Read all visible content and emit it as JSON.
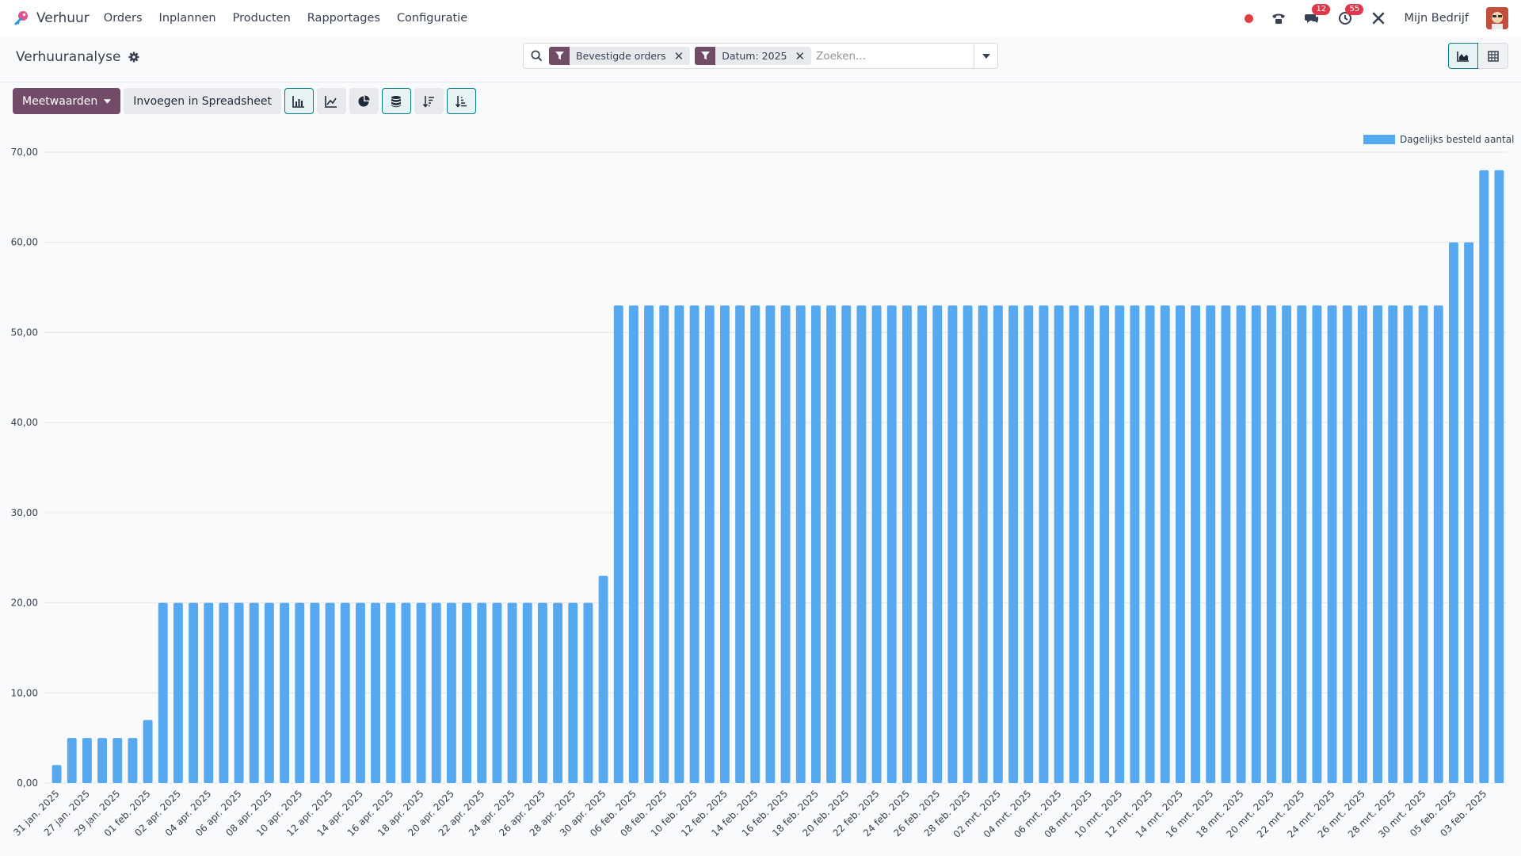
{
  "navbar": {
    "app_name": "Verhuur",
    "menu": [
      "Orders",
      "Inplannen",
      "Producten",
      "Rapportages",
      "Configuratie"
    ],
    "messages_badge": "12",
    "activities_badge": "55",
    "company": "Mijn Bedrijf"
  },
  "control_panel": {
    "title": "Verhuuranalyse",
    "facets": [
      {
        "label": "Bevestigde orders"
      },
      {
        "label": "Datum: 2025"
      }
    ],
    "search_placeholder": "Zoeken...",
    "measures_label": "Meetwaarden",
    "spreadsheet_label": "Invoegen in Spreadsheet"
  },
  "colors": {
    "brand": "#714b67",
    "accent": "#017e84",
    "bar": "#56a8ef"
  },
  "chart_data": {
    "type": "bar",
    "title": "",
    "xlabel": "",
    "ylabel": "",
    "ylim": [
      0,
      70
    ],
    "yticks": [
      "0,00",
      "10,00",
      "20,00",
      "30,00",
      "40,00",
      "50,00",
      "60,00",
      "70,00"
    ],
    "legend_position": "top-right",
    "grid": true,
    "series": [
      {
        "name": "Dagelijks besteld aantal",
        "values": [
          2,
          5,
          5,
          5,
          5,
          5,
          7,
          20,
          20,
          20,
          20,
          20,
          20,
          20,
          20,
          20,
          20,
          20,
          20,
          20,
          20,
          20,
          20,
          20,
          20,
          20,
          20,
          20,
          20,
          20,
          20,
          20,
          20,
          20,
          20,
          20,
          23,
          53,
          53,
          53,
          53,
          53,
          53,
          53,
          53,
          53,
          53,
          53,
          53,
          53,
          53,
          53,
          53,
          53,
          53,
          53,
          53,
          53,
          53,
          53,
          53,
          53,
          53,
          53,
          53,
          53,
          53,
          53,
          53,
          53,
          53,
          53,
          53,
          53,
          53,
          53,
          53,
          53,
          53,
          53,
          53,
          53,
          53,
          53,
          53,
          53,
          53,
          53,
          53,
          53,
          53,
          53,
          60,
          60,
          68,
          68
        ]
      }
    ],
    "x_tick_labels": [
      "31 jan. 2025",
      "27 jan. 2025",
      "29 jan. 2025",
      "01 feb. 2025",
      "02 apr. 2025",
      "04 apr. 2025",
      "06 apr. 2025",
      "08 apr. 2025",
      "10 apr. 2025",
      "12 apr. 2025",
      "14 apr. 2025",
      "16 apr. 2025",
      "18 apr. 2025",
      "20 apr. 2025",
      "22 apr. 2025",
      "24 apr. 2025",
      "26 apr. 2025",
      "28 apr. 2025",
      "30 apr. 2025",
      "06 feb. 2025",
      "08 feb. 2025",
      "10 feb. 2025",
      "12 feb. 2025",
      "14 feb. 2025",
      "16 feb. 2025",
      "18 feb. 2025",
      "20 feb. 2025",
      "22 feb. 2025",
      "24 feb. 2025",
      "26 feb. 2025",
      "28 feb. 2025",
      "02 mrt. 2025",
      "04 mrt. 2025",
      "06 mrt. 2025",
      "08 mrt. 2025",
      "10 mrt. 2025",
      "12 mrt. 2025",
      "14 mrt. 2025",
      "16 mrt. 2025",
      "18 mrt. 2025",
      "20 mrt. 2025",
      "22 mrt. 2025",
      "24 mrt. 2025",
      "26 mrt. 2025",
      "28 mrt. 2025",
      "30 mrt. 2025",
      "05 feb. 2025",
      "03 feb. 2025"
    ]
  }
}
